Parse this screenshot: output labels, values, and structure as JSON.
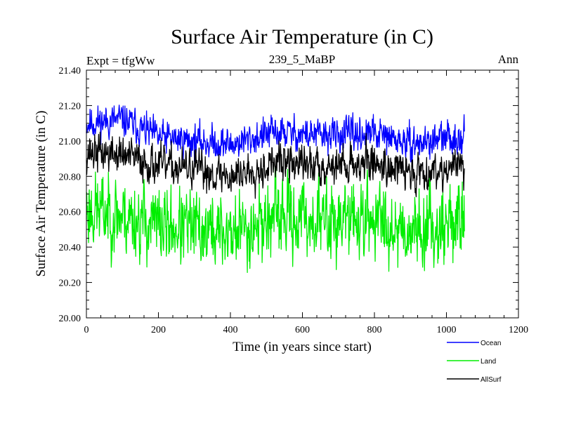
{
  "chart_data": {
    "type": "line",
    "title": "Surface Air Temperature (in C)",
    "subtitle_left": "Expt = tfgWw",
    "subtitle_center": "239_5_MaBP",
    "subtitle_right": "Ann",
    "xlabel": "Time (in years since start)",
    "ylabel": "Surface Air Temperature (in C)",
    "xlim": [
      0,
      1200
    ],
    "ylim": [
      20.0,
      21.4
    ],
    "x_ticks": [
      0,
      200,
      400,
      600,
      800,
      1000,
      1200
    ],
    "x_tick_labels": [
      "0",
      "200",
      "400",
      "600",
      "800",
      "1000",
      "1200"
    ],
    "y_ticks": [
      20.0,
      20.2,
      20.4,
      20.6,
      20.8,
      21.0,
      21.2,
      21.4
    ],
    "y_tick_labels": [
      "20.00",
      "20.20",
      "20.40",
      "20.60",
      "20.80",
      "21.00",
      "21.20",
      "21.40"
    ],
    "x_range": [
      0,
      1050
    ],
    "series": [
      {
        "name": "Ocean",
        "color": "#0000ff",
        "mean": 21.02,
        "amplitude": 0.07,
        "seed": 11,
        "anchors": [
          [
            0,
            21.1
          ],
          [
            100,
            21.12
          ],
          [
            200,
            21.02
          ],
          [
            300,
            21.0
          ],
          [
            400,
            20.98
          ],
          [
            530,
            21.05
          ],
          [
            650,
            21.03
          ],
          [
            800,
            21.04
          ],
          [
            900,
            20.98
          ],
          [
            1050,
            21.03
          ]
        ]
      },
      {
        "name": "Land",
        "color": "#00ee00",
        "mean": 20.55,
        "amplitude": 0.16,
        "seed": 23,
        "anchors": [
          [
            0,
            20.62
          ],
          [
            100,
            20.58
          ],
          [
            200,
            20.52
          ],
          [
            300,
            20.5
          ],
          [
            400,
            20.48
          ],
          [
            530,
            20.57
          ],
          [
            650,
            20.55
          ],
          [
            800,
            20.56
          ],
          [
            900,
            20.5
          ],
          [
            1050,
            20.55
          ]
        ]
      },
      {
        "name": "AllSurf",
        "color": "#000000",
        "mean": 20.86,
        "amplitude": 0.08,
        "seed": 37,
        "anchors": [
          [
            0,
            20.94
          ],
          [
            100,
            20.92
          ],
          [
            200,
            20.86
          ],
          [
            300,
            20.84
          ],
          [
            400,
            20.8
          ],
          [
            530,
            20.88
          ],
          [
            650,
            20.86
          ],
          [
            800,
            20.88
          ],
          [
            900,
            20.82
          ],
          [
            1050,
            20.86
          ]
        ]
      }
    ]
  }
}
